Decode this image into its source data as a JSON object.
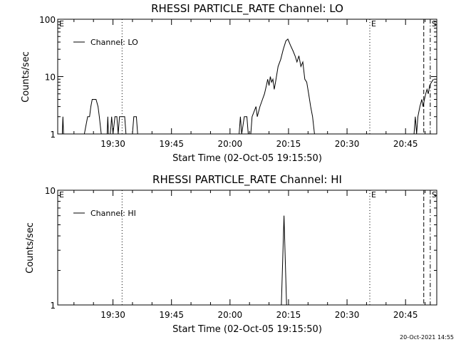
{
  "chart_data": [
    {
      "type": "line",
      "title": "RHESSI PARTICLE_RATE Channel: LO",
      "xlabel": "Start Time (02-Oct-05 19:15:50)",
      "ylabel": "Counts/sec",
      "yscale": "log",
      "xlim": [
        "19:15:50",
        "20:53:00"
      ],
      "ylim": [
        1,
        100
      ],
      "x_ticks": [
        "19:30",
        "19:45",
        "20:00",
        "20:15",
        "20:30",
        "20:45"
      ],
      "y_ticks": [
        "1",
        "10",
        "100"
      ],
      "grid": false,
      "legend": {
        "placement": "top-left",
        "entries": [
          "Channel: LO"
        ]
      },
      "series": [
        {
          "name": "Channel: LO",
          "color": "#000000",
          "segments": [
            [
              [
                "19:17:00",
                1
              ],
              [
                "19:17:10",
                2
              ],
              [
                "19:17:20",
                1
              ]
            ],
            [
              [
                "19:22:40",
                1
              ],
              [
                "19:23:30",
                2
              ],
              [
                "19:24:00",
                2
              ],
              [
                "19:24:20",
                3
              ],
              [
                "19:24:40",
                4
              ],
              [
                "19:25:40",
                4
              ],
              [
                "19:26:10",
                3
              ],
              [
                "19:26:30",
                2
              ],
              [
                "19:27:00",
                1
              ]
            ],
            [
              [
                "19:28:30",
                1
              ],
              [
                "19:28:40",
                2
              ],
              [
                "19:28:50",
                1
              ]
            ],
            [
              [
                "19:29:20",
                1
              ],
              [
                "19:29:40",
                2
              ],
              [
                "19:30:00",
                1
              ],
              [
                "19:30:30",
                2
              ],
              [
                "19:31:00",
                2
              ],
              [
                "19:31:20",
                1
              ],
              [
                "19:31:40",
                2
              ],
              [
                "19:33:00",
                2
              ],
              [
                "19:33:20",
                1
              ]
            ],
            [
              [
                "19:35:00",
                1
              ],
              [
                "19:35:20",
                2
              ],
              [
                "19:36:00",
                2
              ],
              [
                "19:36:20",
                1
              ]
            ],
            [
              [
                "20:02:20",
                1
              ],
              [
                "20:02:40",
                2
              ],
              [
                "20:03:00",
                1
              ],
              [
                "20:03:40",
                2
              ],
              [
                "20:04:20",
                2
              ],
              [
                "20:04:40",
                1
              ]
            ],
            [
              [
                "20:05:20",
                1
              ],
              [
                "20:05:40",
                2
              ],
              [
                "20:06:40",
                3
              ],
              [
                "20:07:00",
                2
              ],
              [
                "20:07:40",
                3
              ],
              [
                "20:08:20",
                4
              ],
              [
                "20:08:50",
                5
              ],
              [
                "20:09:20",
                7
              ],
              [
                "20:09:40",
                9
              ],
              [
                "20:10:00",
                7
              ],
              [
                "20:10:20",
                10
              ],
              [
                "20:10:40",
                8
              ],
              [
                "20:11:00",
                9
              ],
              [
                "20:11:20",
                6
              ],
              [
                "20:11:40",
                8
              ],
              [
                "20:12:20",
                15
              ],
              [
                "20:13:00",
                20
              ],
              [
                "20:13:40",
                30
              ],
              [
                "20:14:20",
                42
              ],
              [
                "20:14:50",
                45
              ],
              [
                "20:15:30",
                35
              ],
              [
                "20:16:10",
                28
              ],
              [
                "20:16:40",
                23
              ],
              [
                "20:17:10",
                18
              ],
              [
                "20:17:40",
                23
              ],
              [
                "20:18:10",
                15
              ],
              [
                "20:18:40",
                18
              ],
              [
                "20:19:10",
                9
              ],
              [
                "20:19:40",
                8
              ],
              [
                "20:20:10",
                5
              ],
              [
                "20:20:40",
                3
              ],
              [
                "20:21:10",
                2
              ],
              [
                "20:21:40",
                1
              ]
            ],
            [
              [
                "20:47:10",
                1
              ],
              [
                "20:47:30",
                2
              ],
              [
                "20:47:50",
                1
              ],
              [
                "20:48:10",
                2
              ],
              [
                "20:48:40",
                3
              ],
              [
                "20:49:10",
                4
              ],
              [
                "20:49:30",
                3
              ],
              [
                "20:49:50",
                4
              ],
              [
                "20:50:10",
                5
              ],
              [
                "20:50:30",
                6
              ],
              [
                "20:50:50",
                5
              ],
              [
                "20:51:10",
                7
              ],
              [
                "20:51:40",
                8
              ],
              [
                "20:52:10",
                9
              ]
            ]
          ]
        }
      ],
      "markers": [
        {
          "label": "E",
          "time": "19:15:50",
          "style": "none"
        },
        {
          "label": "",
          "time": "19:32:20",
          "style": "dotted"
        },
        {
          "label": "E",
          "time": "20:35:50",
          "style": "dotted"
        },
        {
          "label": "",
          "time": "20:49:40",
          "style": "dashed"
        },
        {
          "label": "S",
          "time": "20:51:20",
          "style": "dashdot"
        }
      ]
    },
    {
      "type": "line",
      "title": "RHESSI PARTICLE_RATE Channel: HI",
      "xlabel": "Start Time (02-Oct-05 19:15:50)",
      "ylabel": "Counts/sec",
      "yscale": "log",
      "xlim": [
        "19:15:50",
        "20:53:00"
      ],
      "ylim": [
        1,
        10
      ],
      "x_ticks": [
        "19:30",
        "19:45",
        "20:00",
        "20:15",
        "20:30",
        "20:45"
      ],
      "y_ticks": [
        "1",
        "10"
      ],
      "grid": false,
      "legend": {
        "placement": "top-left",
        "entries": [
          "Channel: HI"
        ]
      },
      "series": [
        {
          "name": "Channel: HI",
          "color": "#000000",
          "segments": [
            [
              [
                "20:13:10",
                1
              ],
              [
                "20:13:50",
                6
              ],
              [
                "20:14:30",
                1
              ]
            ]
          ]
        }
      ],
      "markers": [
        {
          "label": "E",
          "time": "19:15:50",
          "style": "none"
        },
        {
          "label": "",
          "time": "19:32:20",
          "style": "dotted"
        },
        {
          "label": "E",
          "time": "20:35:50",
          "style": "dotted"
        },
        {
          "label": "",
          "time": "20:49:40",
          "style": "dashed"
        },
        {
          "label": "S",
          "time": "20:51:20",
          "style": "dashdot"
        }
      ]
    }
  ],
  "footer": {
    "timestamp": "20-Oct-2021 14:55"
  }
}
